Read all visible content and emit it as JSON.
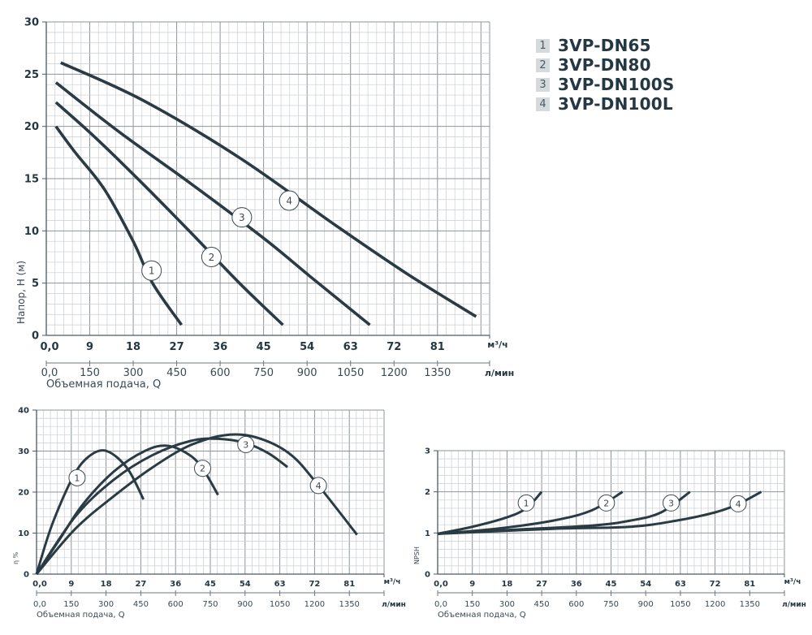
{
  "legend": [
    {
      "num": "1",
      "name": "3VP-DN65"
    },
    {
      "num": "2",
      "name": "3VP-DN80"
    },
    {
      "num": "3",
      "name": "3VP-DN100S"
    },
    {
      "num": "4",
      "name": "3VP-DN100L"
    }
  ],
  "colors": {
    "curve": "#2a3b44",
    "text": "#243844",
    "grid_minor": "#c9ced1",
    "grid_major": "#8c969b"
  },
  "chart_data": [
    {
      "id": "head",
      "type": "line",
      "ylabel": "Напор, H (м)",
      "xlabel": "Объемная подача, Q",
      "x_unit": "м³/ч",
      "x2_unit": "л/мин",
      "xlim": [
        0,
        91.8
      ],
      "ylim": [
        0,
        30
      ],
      "x_ticks": [
        "0,0",
        "9",
        "18",
        "27",
        "36",
        "45",
        "54",
        "63",
        "72",
        "81"
      ],
      "x2_ticks": [
        "0,0",
        "150",
        "300",
        "450",
        "600",
        "750",
        "900",
        "1050",
        "1200",
        "1350"
      ],
      "y_ticks": [
        "0",
        "5",
        "10",
        "15",
        "20",
        "25",
        "30"
      ],
      "grid": true,
      "series": [
        {
          "name": "1",
          "points": [
            [
              2,
              20
            ],
            [
              6,
              17.5
            ],
            [
              12,
              14
            ],
            [
              18,
              9
            ],
            [
              22,
              5
            ],
            [
              28,
              1
            ]
          ],
          "label_at": [
            21.8,
            6.2
          ]
        },
        {
          "name": "2",
          "points": [
            [
              2,
              22.3
            ],
            [
              10,
              19
            ],
            [
              20,
              14.5
            ],
            [
              30,
              9.8
            ],
            [
              40,
              5
            ],
            [
              49,
              1
            ]
          ],
          "label_at": [
            34.2,
            7.5
          ]
        },
        {
          "name": "3",
          "points": [
            [
              2,
              24.2
            ],
            [
              15,
              19.5
            ],
            [
              30,
              14.5
            ],
            [
              45,
              9.3
            ],
            [
              55,
              5.5
            ],
            [
              67,
              1
            ]
          ],
          "label_at": [
            40.5,
            11.3
          ]
        },
        {
          "name": "4",
          "points": [
            [
              3,
              26.1
            ],
            [
              20,
              22.5
            ],
            [
              40,
              17
            ],
            [
              60,
              10.5
            ],
            [
              75,
              5.8
            ],
            [
              89,
              1.8
            ]
          ],
          "label_at": [
            50.3,
            12.9
          ]
        }
      ]
    },
    {
      "id": "efficiency",
      "type": "line",
      "ylabel": "η %",
      "xlabel": "Объемная подача, Q",
      "x_unit": "м³/ч",
      "x2_unit": "л/мин",
      "xlim": [
        0,
        90
      ],
      "ylim": [
        0,
        40
      ],
      "x_ticks": [
        "0,0",
        "9",
        "18",
        "27",
        "36",
        "45",
        "54",
        "63",
        "72",
        "81"
      ],
      "x2_ticks": [
        "0,0",
        "150",
        "300",
        "450",
        "600",
        "750",
        "900",
        "1050",
        "1200",
        "1350"
      ],
      "y_ticks": [
        "0",
        "10",
        "20",
        "30",
        "40"
      ],
      "grid": true,
      "series": [
        {
          "name": "1",
          "points": [
            [
              0,
              0
            ],
            [
              4,
              12
            ],
            [
              9.5,
              23.8
            ],
            [
              13.7,
              28.8
            ],
            [
              18.2,
              30
            ],
            [
              23.5,
              25.8
            ],
            [
              27.7,
              18.2
            ]
          ],
          "label_at": [
            10.5,
            23.5
          ]
        },
        {
          "name": "2",
          "points": [
            [
              0,
              0
            ],
            [
              6,
              8.5
            ],
            [
              12,
              17
            ],
            [
              20,
              25
            ],
            [
              28,
              30
            ],
            [
              34,
              31.3
            ],
            [
              40,
              28.8
            ],
            [
              43.5,
              25
            ],
            [
              47,
              19.3
            ]
          ],
          "label_at": [
            43,
            25.8
          ]
        },
        {
          "name": "3",
          "points": [
            [
              0,
              0
            ],
            [
              10,
              14
            ],
            [
              20,
              23
            ],
            [
              30,
              29
            ],
            [
              40,
              32.5
            ],
            [
              47,
              33
            ],
            [
              54,
              32
            ],
            [
              60,
              29.5
            ],
            [
              65,
              26.1
            ]
          ],
          "label_at": [
            54.2,
            31.6
          ]
        },
        {
          "name": "4",
          "points": [
            [
              0,
              0
            ],
            [
              10,
              11
            ],
            [
              20,
              19
            ],
            [
              30,
              26
            ],
            [
              40,
              31.5
            ],
            [
              50,
              34
            ],
            [
              58,
              33
            ],
            [
              66,
              29
            ],
            [
              73,
              21.6
            ],
            [
              83,
              9.6
            ]
          ],
          "label_at": [
            73,
            21.6
          ]
        }
      ]
    },
    {
      "id": "npsh",
      "type": "line",
      "ylabel": "NPSH",
      "xlabel": "Объемная подача, Q",
      "x_unit": "м³/ч",
      "x2_unit": "л/мин",
      "xlim": [
        0,
        90
      ],
      "ylim": [
        0,
        3
      ],
      "x_ticks": [
        "0,0",
        "9",
        "18",
        "27",
        "36",
        "45",
        "54",
        "63",
        "72",
        "81"
      ],
      "x2_ticks": [
        "0,0",
        "150",
        "300",
        "450",
        "600",
        "750",
        "900",
        "1050",
        "1200",
        "1350"
      ],
      "y_ticks": [
        "0",
        "1",
        "2",
        "3"
      ],
      "grid": true,
      "series": [
        {
          "name": "1",
          "points": [
            [
              0,
              0.98
            ],
            [
              9,
              1.15
            ],
            [
              18,
              1.38
            ],
            [
              23,
              1.6
            ],
            [
              27,
              2.0
            ]
          ],
          "label_at": [
            23,
            1.73
          ]
        },
        {
          "name": "2",
          "points": [
            [
              0,
              0.98
            ],
            [
              15,
              1.1
            ],
            [
              30,
              1.3
            ],
            [
              40,
              1.55
            ],
            [
              48,
              2.0
            ]
          ],
          "label_at": [
            43.8,
            1.73
          ]
        },
        {
          "name": "3",
          "points": [
            [
              0,
              0.98
            ],
            [
              20,
              1.08
            ],
            [
              40,
              1.18
            ],
            [
              50,
              1.3
            ],
            [
              58,
              1.5
            ],
            [
              65.5,
              2.0
            ]
          ],
          "label_at": [
            60.6,
            1.73
          ]
        },
        {
          "name": "4",
          "points": [
            [
              0,
              0.98
            ],
            [
              30,
              1.1
            ],
            [
              50,
              1.15
            ],
            [
              62,
              1.3
            ],
            [
              72,
              1.5
            ],
            [
              78,
              1.7
            ],
            [
              84,
              2.0
            ]
          ],
          "label_at": [
            78,
            1.71
          ]
        }
      ]
    }
  ]
}
